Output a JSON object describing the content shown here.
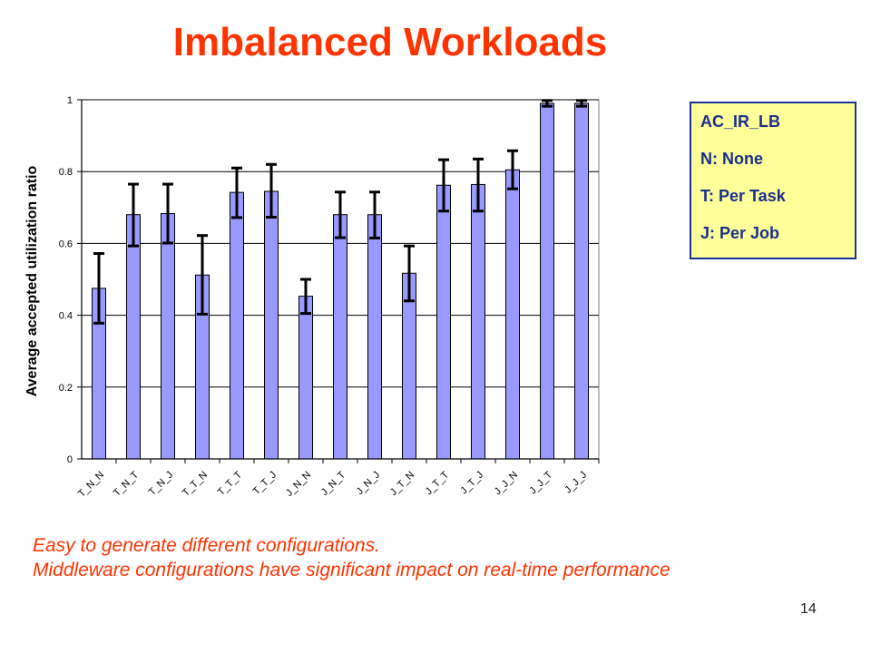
{
  "slide": {
    "title": "Imbalanced Workloads",
    "caption_line1": "Easy to generate different configurations.",
    "caption_line2": "Middleware configurations have significant impact on real-time performance",
    "page_number": "14"
  },
  "legend": {
    "lines": [
      "AC_IR_LB",
      "N: None",
      "T: Per Task",
      "J: Per Job"
    ]
  },
  "colors": {
    "bar": "#9999ff",
    "title": "#ff3300",
    "legend_bg": "#ffff99"
  },
  "chart_data": {
    "type": "bar",
    "title": "",
    "xlabel": "",
    "ylabel": "Average accepted utilization ratio",
    "ylim": [
      0,
      1
    ],
    "yticks": [
      0,
      0.2,
      0.4,
      0.6,
      0.8,
      1
    ],
    "ytick_labels": [
      "0",
      "0.2",
      "0.4",
      "0.6",
      "0.8",
      "1"
    ],
    "grid": "horizontal",
    "categories": [
      "T_N_N",
      "T_N_T",
      "T_N_J",
      "T_T_N",
      "T_T_T",
      "T_T_J",
      "J_N_N",
      "J_N_T",
      "J_N_J",
      "J_T_N",
      "J_T_T",
      "J_T_J",
      "J_J_N",
      "J_J_T",
      "J_J_J"
    ],
    "values": [
      0.475,
      0.68,
      0.683,
      0.512,
      0.742,
      0.745,
      0.453,
      0.68,
      0.68,
      0.517,
      0.762,
      0.764,
      0.805,
      0.99,
      0.99
    ],
    "error_low": [
      0.378,
      0.593,
      0.601,
      0.403,
      0.672,
      0.673,
      0.405,
      0.616,
      0.615,
      0.44,
      0.69,
      0.69,
      0.752,
      0.982,
      0.982
    ],
    "error_high": [
      0.572,
      0.765,
      0.765,
      0.622,
      0.81,
      0.82,
      0.5,
      0.743,
      0.743,
      0.593,
      0.833,
      0.835,
      0.858,
      0.998,
      0.998
    ]
  }
}
